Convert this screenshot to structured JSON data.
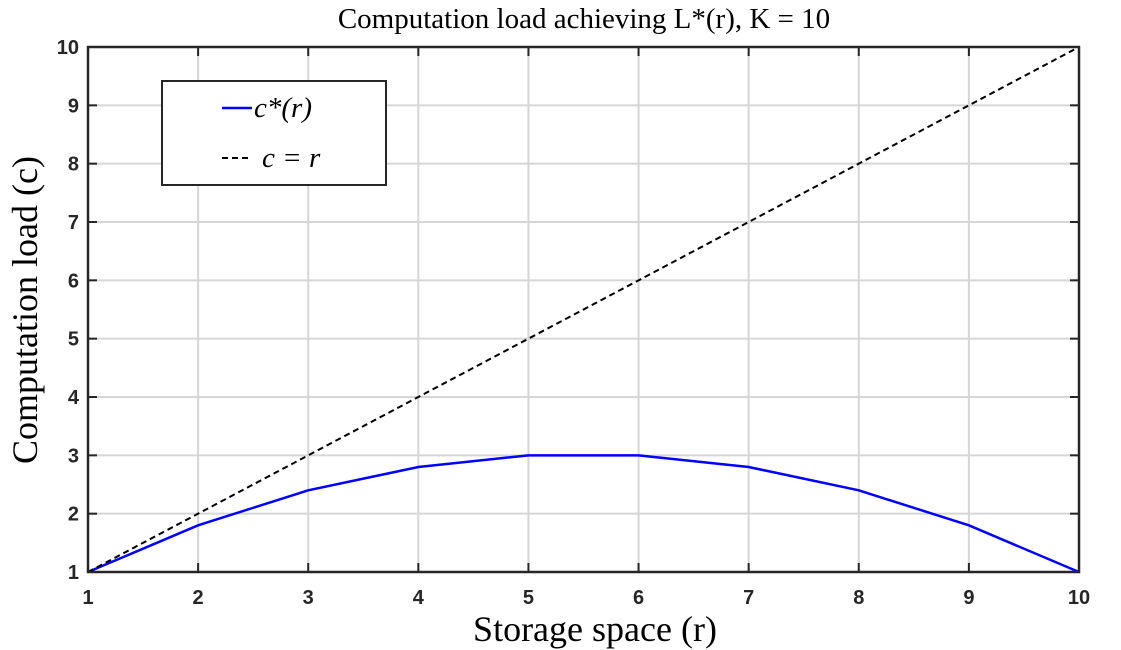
{
  "chart_data": {
    "type": "line",
    "title": "Computation load achieving L*(r), K = 10",
    "xlabel": "Storage space (r)",
    "ylabel": "Computation load (c)",
    "xlim": [
      1,
      10
    ],
    "ylim": [
      1,
      10
    ],
    "xticks": [
      "1",
      "2",
      "3",
      "4",
      "5",
      "6",
      "7",
      "8",
      "9",
      "10"
    ],
    "yticks": [
      "1",
      "2",
      "3",
      "4",
      "5",
      "6",
      "7",
      "8",
      "9",
      "10"
    ],
    "grid": true,
    "legend_position": "top-left",
    "x": [
      1,
      2,
      3,
      4,
      5,
      6,
      7,
      8,
      9,
      10
    ],
    "series": [
      {
        "name": "c*(r)",
        "values": [
          1,
          1.8,
          2.4,
          2.8,
          3,
          3,
          2.8,
          2.4,
          1.8,
          1
        ],
        "color": "#0000ff",
        "style": "solid"
      },
      {
        "name": "c = r",
        "values": [
          1,
          2,
          3,
          4,
          5,
          6,
          7,
          8,
          9,
          10
        ],
        "color": "#000000",
        "style": "dashed"
      }
    ]
  }
}
